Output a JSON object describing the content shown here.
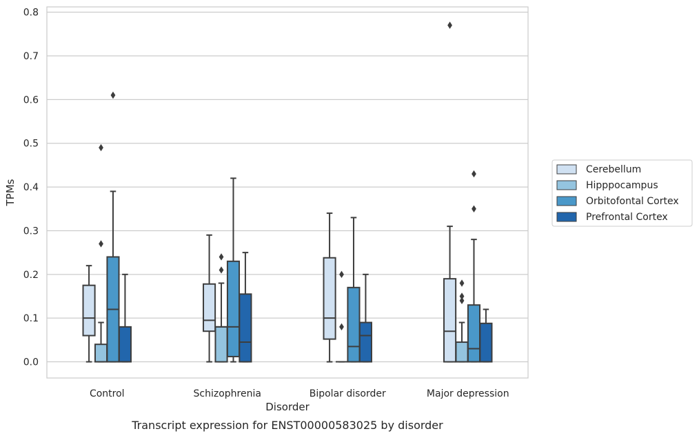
{
  "chart_data": {
    "type": "box",
    "caption": "Transcript expression for ENST00000583025 by disorder",
    "xlabel": "Disorder",
    "ylabel": "TPMs",
    "ylim": [
      -0.037,
      0.812
    ],
    "yticks": [
      0.0,
      0.1,
      0.2,
      0.3,
      0.4,
      0.5,
      0.6,
      0.7,
      0.8
    ],
    "ytick_labels": [
      "0.0",
      "0.1",
      "0.2",
      "0.3",
      "0.4",
      "0.5",
      "0.6",
      "0.7",
      "0.8"
    ],
    "grid": "horizontal",
    "legend_position": "right",
    "categories": [
      "Control",
      "Schizophrenia",
      "Bipolar disorder",
      "Major depression"
    ],
    "series": [
      {
        "name": "Cerebellum",
        "color": "#d0e1f2",
        "boxes": [
          {
            "whisker_low": 0.0,
            "q1": 0.06,
            "median": 0.1,
            "q3": 0.175,
            "whisker_high": 0.22,
            "outliers": []
          },
          {
            "whisker_low": 0.0,
            "q1": 0.07,
            "median": 0.095,
            "q3": 0.178,
            "whisker_high": 0.29,
            "outliers": []
          },
          {
            "whisker_low": 0.0,
            "q1": 0.052,
            "median": 0.1,
            "q3": 0.238,
            "whisker_high": 0.34,
            "outliers": []
          },
          {
            "whisker_low": 0.0,
            "q1": 0.0,
            "median": 0.07,
            "q3": 0.19,
            "whisker_high": 0.31,
            "outliers": [
              0.77
            ]
          }
        ]
      },
      {
        "name": "Hipppocampus",
        "color": "#94c4df",
        "boxes": [
          {
            "whisker_low": 0.0,
            "q1": 0.0,
            "median": 0.0,
            "q3": 0.04,
            "whisker_high": 0.09,
            "outliers": [
              0.27,
              0.49
            ]
          },
          {
            "whisker_low": 0.0,
            "q1": 0.0,
            "median": 0.08,
            "q3": 0.08,
            "whisker_high": 0.18,
            "outliers": [
              0.21,
              0.24
            ]
          },
          {
            "whisker_low": 0.0,
            "q1": 0.0,
            "median": 0.0,
            "q3": 0.0,
            "whisker_high": 0.0,
            "outliers": [
              0.08,
              0.2
            ]
          },
          {
            "whisker_low": 0.0,
            "q1": 0.0,
            "median": 0.0,
            "q3": 0.045,
            "whisker_high": 0.09,
            "outliers": [
              0.14,
              0.15,
              0.18
            ]
          }
        ]
      },
      {
        "name": "Orbitofontal Cortex",
        "color": "#4a98c9",
        "boxes": [
          {
            "whisker_low": 0.0,
            "q1": 0.0,
            "median": 0.12,
            "q3": 0.24,
            "whisker_high": 0.39,
            "outliers": [
              0.61
            ]
          },
          {
            "whisker_low": 0.0,
            "q1": 0.012,
            "median": 0.08,
            "q3": 0.23,
            "whisker_high": 0.42,
            "outliers": []
          },
          {
            "whisker_low": 0.0,
            "q1": 0.0,
            "median": 0.035,
            "q3": 0.17,
            "whisker_high": 0.33,
            "outliers": []
          },
          {
            "whisker_low": 0.0,
            "q1": 0.0,
            "median": 0.03,
            "q3": 0.13,
            "whisker_high": 0.28,
            "outliers": [
              0.35,
              0.43
            ]
          }
        ]
      },
      {
        "name": "Prefrontal Cortex",
        "color": "#2266ac",
        "boxes": [
          {
            "whisker_low": 0.0,
            "q1": 0.0,
            "median": 0.0,
            "q3": 0.08,
            "whisker_high": 0.2,
            "outliers": []
          },
          {
            "whisker_low": 0.0,
            "q1": 0.0,
            "median": 0.045,
            "q3": 0.155,
            "whisker_high": 0.25,
            "outliers": []
          },
          {
            "whisker_low": 0.0,
            "q1": 0.0,
            "median": 0.06,
            "q3": 0.09,
            "whisker_high": 0.2,
            "outliers": []
          },
          {
            "whisker_low": 0.0,
            "q1": 0.0,
            "median": 0.0,
            "q3": 0.088,
            "whisker_high": 0.12,
            "outliers": []
          }
        ]
      }
    ]
  }
}
